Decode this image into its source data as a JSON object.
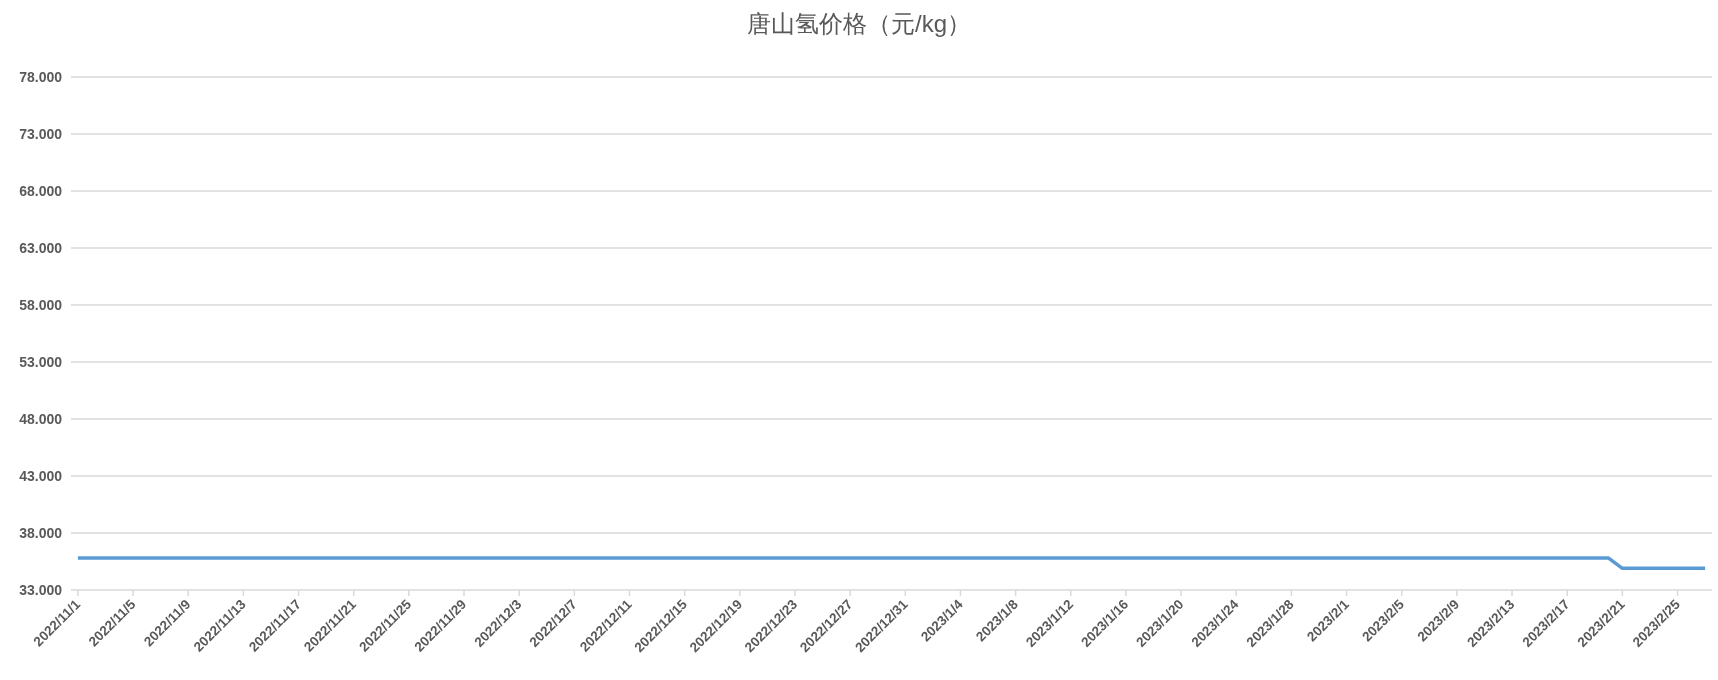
{
  "chart_data": {
    "type": "line",
    "title": "唐山氢价格（元/kg）",
    "categories": [
      "2022/11/1",
      null,
      null,
      null,
      "2022/11/5",
      null,
      null,
      null,
      "2022/11/9",
      null,
      null,
      null,
      "2022/11/13",
      null,
      null,
      null,
      "2022/11/17",
      null,
      null,
      null,
      "2022/11/21",
      null,
      null,
      null,
      "2022/11/25",
      null,
      null,
      null,
      "2022/11/29",
      null,
      null,
      null,
      "2022/12/3",
      null,
      null,
      null,
      "2022/12/7",
      null,
      null,
      null,
      "2022/12/11",
      null,
      null,
      null,
      "2022/12/15",
      null,
      null,
      null,
      "2022/12/19",
      null,
      null,
      null,
      "2022/12/23",
      null,
      null,
      null,
      "2022/12/27",
      null,
      null,
      null,
      "2022/12/31",
      null,
      null,
      null,
      "2023/1/4",
      null,
      null,
      null,
      "2023/1/8",
      null,
      null,
      null,
      "2023/1/12",
      null,
      null,
      null,
      "2023/1/16",
      null,
      null,
      null,
      "2023/1/20",
      null,
      null,
      null,
      "2023/1/24",
      null,
      null,
      null,
      "2023/1/28",
      null,
      null,
      null,
      "2023/2/1",
      null,
      null,
      null,
      "2023/2/5",
      null,
      null,
      null,
      "2023/2/9",
      null,
      null,
      null,
      "2023/2/13",
      null,
      null,
      null,
      "2023/2/17",
      null,
      null,
      null,
      "2023/2/21",
      null,
      null,
      null,
      "2023/2/25",
      null,
      null
    ],
    "series": [
      {
        "color": "#5b9bd5",
        "values": [
          35.8,
          35.8,
          35.8,
          35.8,
          35.8,
          35.8,
          35.8,
          35.8,
          35.8,
          35.8,
          35.8,
          35.8,
          35.8,
          35.8,
          35.8,
          35.8,
          35.8,
          35.8,
          35.8,
          35.8,
          35.8,
          35.8,
          35.8,
          35.8,
          35.8,
          35.8,
          35.8,
          35.8,
          35.8,
          35.8,
          35.8,
          35.8,
          35.8,
          35.8,
          35.8,
          35.8,
          35.8,
          35.8,
          35.8,
          35.8,
          35.8,
          35.8,
          35.8,
          35.8,
          35.8,
          35.8,
          35.8,
          35.8,
          35.8,
          35.8,
          35.8,
          35.8,
          35.8,
          35.8,
          35.8,
          35.8,
          35.8,
          35.8,
          35.8,
          35.8,
          35.8,
          35.8,
          35.8,
          35.8,
          35.8,
          35.8,
          35.8,
          35.8,
          35.8,
          35.8,
          35.8,
          35.8,
          35.8,
          35.8,
          35.8,
          35.8,
          35.8,
          35.8,
          35.8,
          35.8,
          35.8,
          35.8,
          35.8,
          35.8,
          35.8,
          35.8,
          35.8,
          35.8,
          35.8,
          35.8,
          35.8,
          35.8,
          35.8,
          35.8,
          35.8,
          35.8,
          35.8,
          35.8,
          35.8,
          35.8,
          35.8,
          35.8,
          35.8,
          35.8,
          35.8,
          35.8,
          35.8,
          35.8,
          35.8,
          35.8,
          35.8,
          35.8,
          34.9,
          34.9,
          34.9,
          34.9,
          34.9,
          34.9,
          34.9
        ]
      }
    ],
    "ylim": [
      33,
      78
    ],
    "yticks": [
      {
        "value": 33,
        "label": "33.000"
      },
      {
        "value": 38,
        "label": "38.000"
      },
      {
        "value": 43,
        "label": "43.000"
      },
      {
        "value": 48,
        "label": "48.000"
      },
      {
        "value": 53,
        "label": "53.000"
      },
      {
        "value": 58,
        "label": "58.000"
      },
      {
        "value": 63,
        "label": "63.000"
      },
      {
        "value": 68,
        "label": "68.000"
      },
      {
        "value": 73,
        "label": "73.000"
      },
      {
        "value": 78,
        "label": "78.000"
      }
    ],
    "grid": "y",
    "marker": "none",
    "line_style": "solid"
  }
}
